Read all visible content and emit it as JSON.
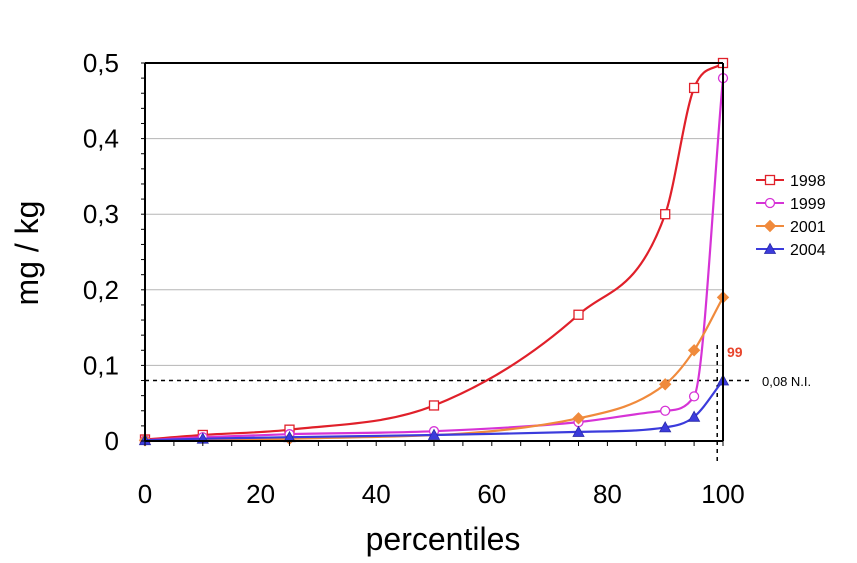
{
  "chart_data": {
    "type": "line",
    "xlabel": "percentiles",
    "ylabel": "mg / kg",
    "xlim": [
      0,
      100
    ],
    "ylim": [
      0,
      0.5
    ],
    "x_ticks": [
      0,
      20,
      40,
      60,
      80,
      100
    ],
    "x_tick_labels": [
      "0",
      "20",
      "40",
      "60",
      "80",
      "100"
    ],
    "y_ticks": [
      0,
      0.1,
      0.2,
      0.3,
      0.4,
      0.5
    ],
    "y_tick_labels": [
      "0",
      "0,1",
      "0,2",
      "0,3",
      "0,4",
      "0,5"
    ],
    "grid": "horizontal",
    "legend_position": "right",
    "series": [
      {
        "name": "1998",
        "color": "#e0202a",
        "marker": "square-open",
        "x": [
          0,
          10,
          25,
          50,
          75,
          90,
          95,
          100
        ],
        "y": [
          0.002,
          0.008,
          0.015,
          0.047,
          0.167,
          0.3,
          0.467,
          0.5
        ]
      },
      {
        "name": "1999",
        "color": "#d633d6",
        "marker": "circle-open",
        "x": [
          0,
          10,
          25,
          50,
          75,
          90,
          95,
          100
        ],
        "y": [
          0.001,
          0.005,
          0.009,
          0.013,
          0.025,
          0.04,
          0.059,
          0.48
        ]
      },
      {
        "name": "2001",
        "color": "#f08a3c",
        "marker": "diamond",
        "x": [
          0,
          25,
          75,
          90,
          95,
          100
        ],
        "y": [
          0.001,
          0.003,
          0.03,
          0.075,
          0.12,
          0.19
        ]
      },
      {
        "name": "2004",
        "color": "#3b3bdc",
        "marker": "triangle",
        "x": [
          0,
          10,
          25,
          50,
          75,
          90,
          95,
          100
        ],
        "y": [
          0.001,
          0.003,
          0.005,
          0.008,
          0.012,
          0.018,
          0.032,
          0.08
        ]
      }
    ],
    "reference_line": {
      "y": 0.08,
      "label": "0,08 N.I."
    },
    "reference_vline": {
      "x": 99,
      "label": "99"
    }
  }
}
